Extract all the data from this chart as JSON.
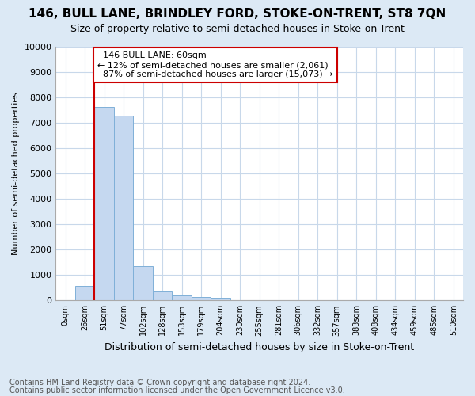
{
  "title": "146, BULL LANE, BRINDLEY FORD, STOKE-ON-TRENT, ST8 7QN",
  "subtitle": "Size of property relative to semi-detached houses in Stoke-on-Trent",
  "xlabel": "Distribution of semi-detached houses by size in Stoke-on-Trent",
  "ylabel": "Number of semi-detached properties",
  "footnote1": "Contains HM Land Registry data © Crown copyright and database right 2024.",
  "footnote2": "Contains public sector information licensed under the Open Government Licence v3.0.",
  "bar_labels": [
    "0sqm",
    "26sqm",
    "51sqm",
    "77sqm",
    "102sqm",
    "128sqm",
    "153sqm",
    "179sqm",
    "204sqm",
    "230sqm",
    "255sqm",
    "281sqm",
    "306sqm",
    "332sqm",
    "357sqm",
    "383sqm",
    "408sqm",
    "434sqm",
    "459sqm",
    "485sqm",
    "510sqm"
  ],
  "bar_values": [
    0,
    560,
    7620,
    7270,
    1340,
    360,
    185,
    130,
    100,
    0,
    0,
    0,
    0,
    0,
    0,
    0,
    0,
    0,
    0,
    0,
    0
  ],
  "bar_color": "#c5d8f0",
  "bar_edge_color": "#7fb0d8",
  "ylim": [
    0,
    10000
  ],
  "yticks": [
    0,
    1000,
    2000,
    3000,
    4000,
    5000,
    6000,
    7000,
    8000,
    9000,
    10000
  ],
  "property_label": "146 BULL LANE: 60sqm",
  "pct_smaller": 12,
  "pct_larger": 87,
  "count_smaller": "2,061",
  "count_larger": "15,073",
  "vline_position": 1.5,
  "annotation_box_color": "#ffffff",
  "annotation_box_edge_color": "#cc0000",
  "bg_color": "#dce9f5",
  "plot_bg_color": "#ffffff",
  "grid_color": "#c8d8ea",
  "title_fontsize": 11,
  "subtitle_fontsize": 9,
  "xlabel_fontsize": 9,
  "ylabel_fontsize": 8,
  "tick_fontsize": 8,
  "annot_fontsize": 8,
  "footnote_fontsize": 7
}
